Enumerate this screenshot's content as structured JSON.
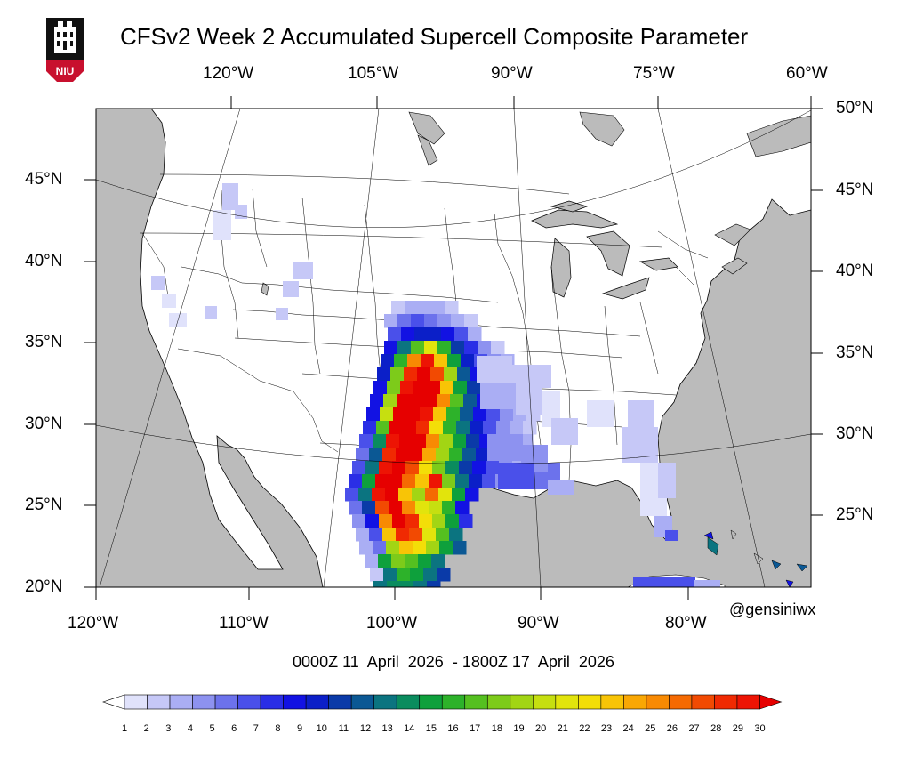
{
  "title": "CFSv2 Week 2 Accumulated Supercell Composite Parameter",
  "logo_text": "NIU",
  "credit": "@gensiniwx",
  "date_range": "0000Z 11  April  2026  - 1800Z 17  April  2026",
  "axes": {
    "top_lon": [
      "120°W",
      "105°W",
      "90°W",
      "75°W",
      "60°W"
    ],
    "bottom_lon": [
      "120°W",
      "110°W",
      "100°W",
      "90°W",
      "80°W"
    ],
    "left_lat": [
      "45°N",
      "40°N",
      "35°N",
      "30°N",
      "25°N",
      "20°N"
    ],
    "right_lat": [
      "50°N",
      "45°N",
      "40°N",
      "35°N",
      "30°N",
      "25°N"
    ]
  },
  "colorbar": {
    "labels": [
      "1",
      "2",
      "3",
      "4",
      "5",
      "6",
      "7",
      "8",
      "9",
      "10",
      "11",
      "12",
      "13",
      "14",
      "15",
      "16",
      "17",
      "18",
      "19",
      "20",
      "21",
      "22",
      "23",
      "24",
      "25",
      "26",
      "27",
      "28",
      "29",
      "30"
    ],
    "colors": [
      "#ffffff",
      "#e0e2fb",
      "#c6c8f7",
      "#aaaef4",
      "#8d92f0",
      "#6c72ec",
      "#4a50ea",
      "#2a2ee6",
      "#1212e3",
      "#0b1fc8",
      "#0a3aa8",
      "#0b5894",
      "#0b7480",
      "#0a8c5e",
      "#0ea03c",
      "#2db22a",
      "#55c020",
      "#7dcb1a",
      "#a2d514",
      "#c6df10",
      "#e2e40c",
      "#f3de08",
      "#f8c406",
      "#f9a704",
      "#f88a03",
      "#f56a02",
      "#f24a02",
      "#f02a02",
      "#ed1404",
      "#e60000"
    ]
  },
  "map": {
    "ocean": "#bbbbbb",
    "land": "#ffffff"
  }
}
